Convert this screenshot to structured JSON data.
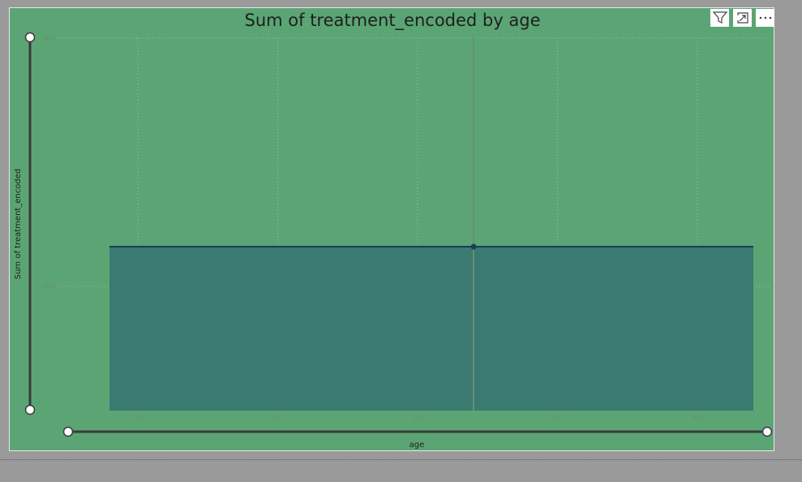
{
  "visual": {
    "header_icons": [
      "filter-icon",
      "focus-mode-icon",
      "more-options-icon"
    ]
  },
  "colors": {
    "background": "#5ba574",
    "area_fill": "#3a7a70",
    "line": "#1a3d5c",
    "gridline": "#8fc59c",
    "hover_line": "#6a8f74",
    "slider": "#3a3a3a"
  },
  "chart_data": {
    "type": "area",
    "title": "Sum of treatment_encoded by age",
    "xlabel": "age",
    "ylabel": "Sum of treatment_encoded",
    "x": [
      18,
      44,
      64
    ],
    "y": [
      216,
      216,
      216
    ],
    "xlim": [
      18,
      64
    ],
    "ylim": [
      150,
      300
    ],
    "x_ticks": [
      20,
      30,
      40,
      50,
      60
    ],
    "y_ticks": [
      200,
      300
    ],
    "highlight_x": 44,
    "grid": true,
    "zoom_sliders": true
  }
}
